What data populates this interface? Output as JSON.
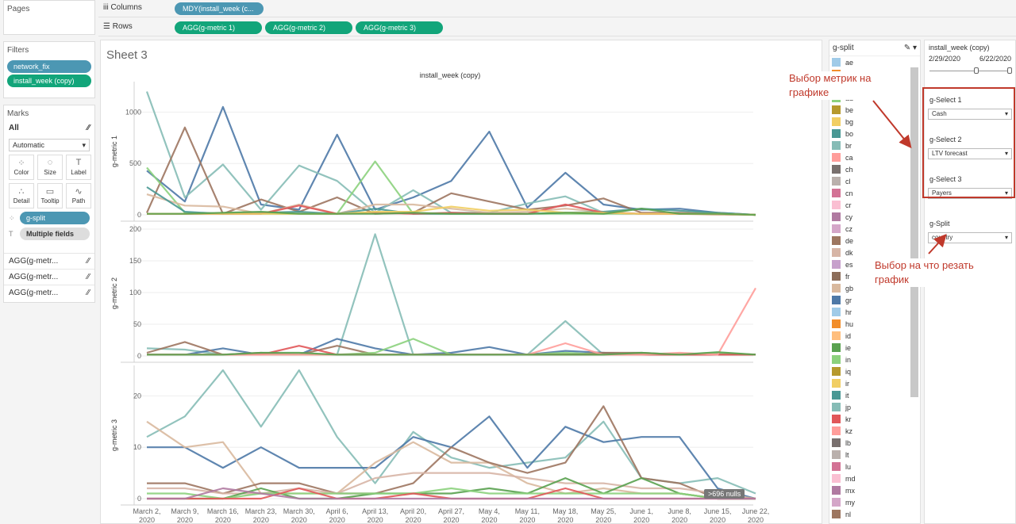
{
  "pages": {
    "title": "Pages"
  },
  "filters": {
    "title": "Filters",
    "items": [
      "network_fix",
      "install_week (copy)"
    ]
  },
  "marks": {
    "title": "Marks",
    "all_label": "All",
    "mark_type": "Automatic",
    "buttons": [
      "Color",
      "Size",
      "Label",
      "Detail",
      "Tooltip",
      "Path"
    ],
    "color_field": "g-split",
    "label_field": "Multiple fields",
    "agg_rows": [
      "AGG(g-metr...",
      "AGG(g-metr...",
      "AGG(g-metr..."
    ]
  },
  "shelves": {
    "columns_label": "Columns",
    "columns_pills": [
      "MDY(install_week (c..."
    ],
    "rows_label": "Rows",
    "rows_pills": [
      "AGG(g-metric 1)",
      "AGG(g-metric 2)",
      "AGG(g-metric 3)"
    ]
  },
  "sheet": {
    "title": "Sheet 3",
    "header": "install_week (copy)",
    "nulls": ">696 nulls"
  },
  "legend": {
    "title": "g-split",
    "items": [
      {
        "code": "ae",
        "color": "#a0cbe8"
      },
      {
        "code": "",
        "color": "#f28e2b"
      },
      {
        "code": "",
        "color": "#ffbe7d"
      },
      {
        "code": "au",
        "color": "#8cd17d"
      },
      {
        "code": "be",
        "color": "#b6992d"
      },
      {
        "code": "bg",
        "color": "#f1ce63"
      },
      {
        "code": "bo",
        "color": "#499894"
      },
      {
        "code": "br",
        "color": "#86bcb6"
      },
      {
        "code": "ca",
        "color": "#ff9d9a"
      },
      {
        "code": "ch",
        "color": "#79706e"
      },
      {
        "code": "cl",
        "color": "#bab0ac"
      },
      {
        "code": "cn",
        "color": "#d37295"
      },
      {
        "code": "cr",
        "color": "#fabfd2"
      },
      {
        "code": "cy",
        "color": "#b07aa1"
      },
      {
        "code": "cz",
        "color": "#d4a6c8"
      },
      {
        "code": "de",
        "color": "#9d7660"
      },
      {
        "code": "dk",
        "color": "#d7b5a6"
      },
      {
        "code": "es",
        "color": "#c7a0cc"
      },
      {
        "code": "fr",
        "color": "#8c6d5a"
      },
      {
        "code": "gb",
        "color": "#d9b99e"
      },
      {
        "code": "gr",
        "color": "#4e79a7"
      },
      {
        "code": "hr",
        "color": "#a0cbe8"
      },
      {
        "code": "hu",
        "color": "#f28e2b"
      },
      {
        "code": "id",
        "color": "#ffbe7d"
      },
      {
        "code": "ie",
        "color": "#59a14f"
      },
      {
        "code": "in",
        "color": "#8cd17d"
      },
      {
        "code": "iq",
        "color": "#b6992d"
      },
      {
        "code": "ir",
        "color": "#f1ce63"
      },
      {
        "code": "it",
        "color": "#499894"
      },
      {
        "code": "jp",
        "color": "#86bcb6"
      },
      {
        "code": "kr",
        "color": "#e15759"
      },
      {
        "code": "kz",
        "color": "#ff9d9a"
      },
      {
        "code": "lb",
        "color": "#79706e"
      },
      {
        "code": "lt",
        "color": "#bab0ac"
      },
      {
        "code": "lu",
        "color": "#d37295"
      },
      {
        "code": "md",
        "color": "#fabfd2"
      },
      {
        "code": "mx",
        "color": "#b07aa1"
      },
      {
        "code": "my",
        "color": "#d4a6c8"
      },
      {
        "code": "nl",
        "color": "#9d7660"
      }
    ]
  },
  "controls": {
    "date_title": "install_week (copy)",
    "date_start": "2/29/2020",
    "date_end": "6/22/2020",
    "selects": [
      {
        "label": "g-Select 1",
        "value": "Cash"
      },
      {
        "label": "g-Select 2",
        "value": "LTV forecast"
      },
      {
        "label": "g-Select 3",
        "value": "Payers"
      },
      {
        "label": "g-Split",
        "value": "country"
      }
    ]
  },
  "annotations": {
    "metrics": [
      "Выбор метрик на",
      "графике"
    ],
    "split": [
      "Выбор на что резать",
      "график"
    ]
  },
  "chart_data": {
    "type": "line",
    "x": [
      "March 2, 2020",
      "March 9, 2020",
      "March 16, 2020",
      "March 23, 2020",
      "March 30, 2020",
      "April 6, 2020",
      "April 13, 2020",
      "April 20, 2020",
      "April 27, 2020",
      "May 4, 2020",
      "May 11, 2020",
      "May 18, 2020",
      "May 25, 2020",
      "June 1, 2020",
      "June 8, 2020",
      "June 15, 2020",
      "June 22, 2020"
    ],
    "panels": [
      {
        "ylabel": "g-metric 1",
        "ylim": [
          0,
          1250
        ],
        "ticks": [
          0,
          500,
          1000
        ],
        "series": [
          {
            "color": "#4e79a7",
            "values": [
              430,
              130,
              1050,
              100,
              50,
              780,
              50,
              170,
              330,
              810,
              70,
              410,
              100,
              50,
              60,
              20,
              0
            ]
          },
          {
            "color": "#86bcb6",
            "values": [
              1200,
              170,
              490,
              50,
              480,
              330,
              20,
              240,
              20,
              20,
              110,
              180,
              20,
              10,
              10,
              10,
              0
            ]
          },
          {
            "color": "#9d7660",
            "values": [
              20,
              850,
              10,
              150,
              30,
              170,
              10,
              20,
              210,
              130,
              50,
              90,
              160,
              20,
              20,
              10,
              0
            ]
          },
          {
            "color": "#8cd17d",
            "values": [
              460,
              20,
              10,
              10,
              10,
              10,
              520,
              10,
              10,
              10,
              10,
              10,
              10,
              10,
              10,
              10,
              0
            ]
          },
          {
            "color": "#d9b99e",
            "values": [
              200,
              90,
              80,
              10,
              100,
              10,
              100,
              100,
              60,
              20,
              30,
              60,
              30,
              10,
              10,
              0,
              0
            ]
          },
          {
            "color": "#499894",
            "values": [
              270,
              30,
              10,
              20,
              30,
              10,
              60,
              10,
              10,
              10,
              10,
              20,
              30,
              60,
              40,
              20,
              0
            ]
          },
          {
            "color": "#e15759",
            "values": [
              10,
              10,
              10,
              10,
              90,
              10,
              20,
              10,
              20,
              10,
              10,
              100,
              20,
              10,
              10,
              10,
              0
            ]
          },
          {
            "color": "#f1ce63",
            "values": [
              10,
              10,
              10,
              10,
              10,
              10,
              30,
              30,
              80,
              40,
              50,
              20,
              20,
              10,
              10,
              10,
              0
            ]
          },
          {
            "color": "#59a14f",
            "values": [
              10,
              10,
              20,
              30,
              10,
              10,
              10,
              20,
              10,
              10,
              10,
              20,
              10,
              60,
              10,
              10,
              0
            ]
          }
        ]
      },
      {
        "ylabel": "g-metric 2",
        "ylim": [
          0,
          200
        ],
        "ticks": [
          0,
          50,
          100,
          150,
          200
        ],
        "series": [
          {
            "color": "#86bcb6",
            "values": [
              12,
              10,
              2,
              2,
              2,
              2,
              192,
              2,
              2,
              2,
              2,
              55,
              2,
              2,
              2,
              2,
              2
            ]
          },
          {
            "color": "#4e79a7",
            "values": [
              2,
              2,
              12,
              2,
              2,
              27,
              12,
              2,
              5,
              14,
              2,
              8,
              5,
              2,
              2,
              2,
              2
            ]
          },
          {
            "color": "#9d7660",
            "values": [
              5,
              22,
              2,
              5,
              2,
              16,
              2,
              2,
              2,
              2,
              2,
              2,
              5,
              5,
              2,
              2,
              2
            ]
          },
          {
            "color": "#8cd17d",
            "values": [
              2,
              2,
              2,
              2,
              2,
              2,
              5,
              27,
              2,
              2,
              2,
              5,
              2,
              2,
              2,
              5,
              2
            ]
          },
          {
            "color": "#e15759",
            "values": [
              2,
              2,
              2,
              2,
              16,
              2,
              2,
              2,
              2,
              2,
              2,
              2,
              2,
              2,
              2,
              2,
              2
            ]
          },
          {
            "color": "#ff9d9a",
            "values": [
              2,
              2,
              2,
              2,
              2,
              2,
              2,
              2,
              2,
              2,
              2,
              20,
              2,
              2,
              5,
              2,
              107
            ]
          },
          {
            "color": "#59a14f",
            "values": [
              2,
              2,
              2,
              5,
              5,
              2,
              2,
              2,
              2,
              2,
              2,
              2,
              2,
              5,
              2,
              6,
              2
            ]
          }
        ]
      },
      {
        "ylabel": "g-metric 3",
        "ylim": [
          0,
          25
        ],
        "ticks": [
          0,
          10,
          20
        ],
        "series": [
          {
            "color": "#86bcb6",
            "values": [
              12,
              16,
              25,
              14,
              25,
              12,
              3,
              13,
              8,
              6,
              7,
              8,
              15,
              4,
              3,
              4,
              1
            ]
          },
          {
            "color": "#4e79a7",
            "values": [
              10,
              10,
              6,
              10,
              6,
              6,
              6,
              12,
              10,
              16,
              6,
              14,
              11,
              12,
              12,
              2,
              0
            ]
          },
          {
            "color": "#d9b99e",
            "values": [
              15,
              10,
              11,
              1,
              1,
              1,
              7,
              11,
              7,
              7,
              3,
              1,
              2,
              1,
              1,
              0,
              0
            ]
          },
          {
            "color": "#9d7660",
            "values": [
              3,
              3,
              1,
              3,
              3,
              1,
              1,
              3,
              10,
              7,
              5,
              7,
              18,
              4,
              3,
              0,
              0
            ]
          },
          {
            "color": "#d7b5a6",
            "values": [
              2,
              2,
              1,
              1,
              2,
              1,
              4,
              5,
              5,
              5,
              4,
              3,
              3,
              2,
              2,
              1,
              0
            ]
          },
          {
            "color": "#59a14f",
            "values": [
              0,
              0,
              0,
              2,
              0,
              0,
              1,
              1,
              1,
              2,
              1,
              4,
              1,
              4,
              1,
              0,
              0
            ]
          },
          {
            "color": "#8cd17d",
            "values": [
              1,
              1,
              0,
              1,
              1,
              1,
              1,
              1,
              2,
              1,
              1,
              1,
              1,
              1,
              1,
              0,
              0
            ]
          },
          {
            "color": "#e15759",
            "values": [
              0,
              0,
              0,
              0,
              2,
              0,
              0,
              1,
              0,
              0,
              0,
              2,
              0,
              0,
              0,
              0,
              0
            ]
          },
          {
            "color": "#b07aa1",
            "values": [
              0,
              0,
              2,
              1,
              0,
              0,
              0,
              0,
              0,
              0,
              0,
              0,
              0,
              0,
              0,
              0,
              0
            ]
          }
        ]
      }
    ]
  }
}
